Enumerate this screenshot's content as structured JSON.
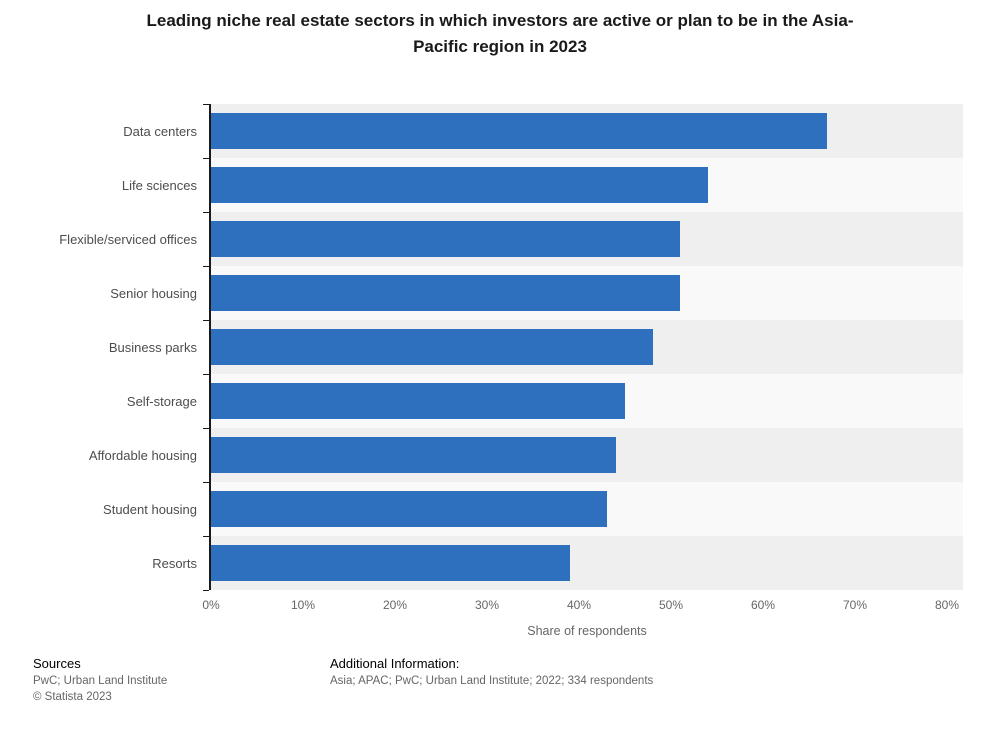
{
  "chart_data": {
    "type": "bar",
    "orientation": "horizontal",
    "title": "Leading niche real estate sectors in which investors are active or plan to be in the Asia-Pacific region in 2023",
    "categories": [
      "Data centers",
      "Life sciences",
      "Flexible/serviced offices",
      "Senior housing",
      "Business parks",
      "Self-storage",
      "Affordable housing",
      "Student housing",
      "Resorts"
    ],
    "values": [
      67,
      54,
      51,
      51,
      48,
      45,
      44,
      43,
      39
    ],
    "unit": "%",
    "xlabel": "Share of respondents",
    "ylabel": "",
    "xlim": [
      0,
      80
    ],
    "x_tick_values": [
      0,
      10,
      20,
      30,
      40,
      50,
      60,
      70,
      80
    ],
    "x_tick_labels": [
      "0%",
      "10%",
      "20%",
      "30%",
      "40%",
      "50%",
      "60%",
      "70%",
      "80%"
    ],
    "legend": "none",
    "grid": false,
    "bar_color": "#2e6fbe",
    "row_stripe_colors": [
      "#efefef",
      "#f9f9f9"
    ],
    "axis_color": "#1a1a1a"
  },
  "footer": {
    "sources_label": "Sources",
    "sources_text": "PwC; Urban Land Institute",
    "copyright": "© Statista 2023",
    "additional_info_label": "Additional Information:",
    "additional_info_text": "Asia; APAC; PwC; Urban Land Institute; 2022; 334 respondents"
  }
}
